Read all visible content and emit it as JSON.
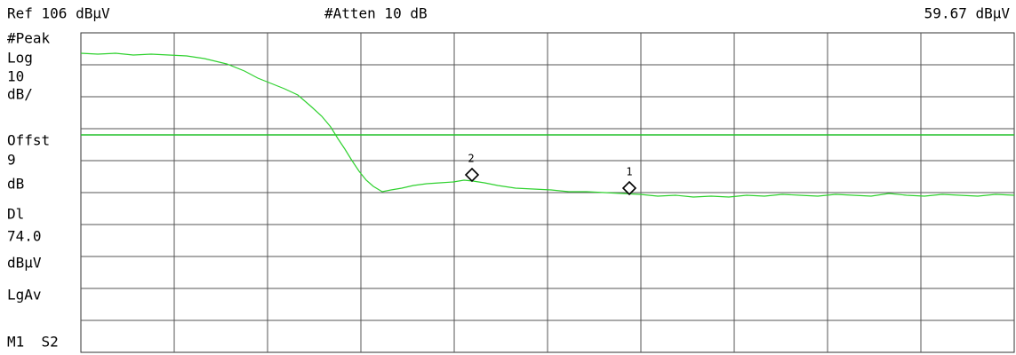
{
  "header": {
    "reference": "Ref 106 dBµV",
    "attenuation": "#Atten 10 dB",
    "marker_readout": "59.67 dBµV"
  },
  "side_labels": [
    "#Peak",
    "Log",
    "10",
    "dB/",
    "Offst",
    "9",
    "dB",
    "Dl",
    "74.0",
    "dBµV",
    "LgAv",
    "M1  S2"
  ],
  "markers": [
    {
      "label": "1"
    },
    {
      "label": "2"
    }
  ]
}
